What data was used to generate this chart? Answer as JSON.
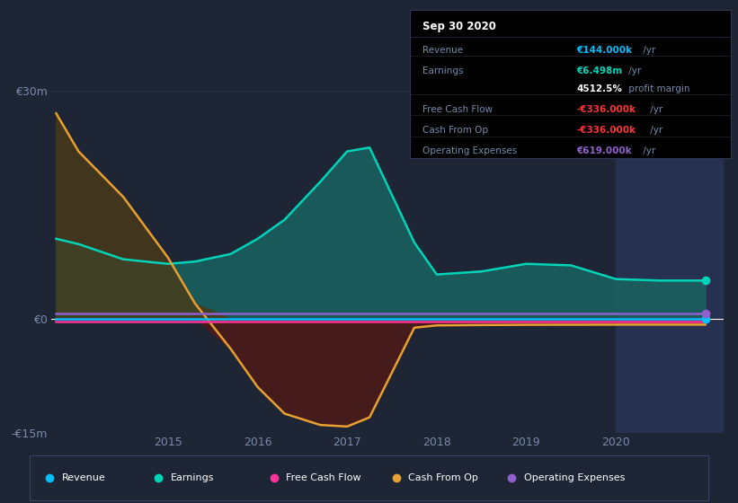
{
  "bg_color": "#1e2535",
  "plot_bg_color": "#1e2535",
  "highlight_color": "#263050",
  "ylim": [
    -15000000,
    30000000
  ],
  "xlim": [
    2013.7,
    2021.2
  ],
  "yticks": [
    -15000000,
    0,
    30000000
  ],
  "ytick_labels": [
    "-€15m",
    "€0",
    "€30m"
  ],
  "xticks": [
    2015,
    2016,
    2017,
    2018,
    2019,
    2020
  ],
  "x": [
    2013.75,
    2014.0,
    2014.5,
    2015.0,
    2015.3,
    2015.7,
    2016.0,
    2016.3,
    2016.7,
    2017.0,
    2017.25,
    2017.75,
    2018.0,
    2018.5,
    2019.0,
    2019.5,
    2020.0,
    2020.5,
    2021.0
  ],
  "revenue": [
    144,
    144,
    144,
    144,
    144,
    144,
    144,
    144,
    144,
    144,
    144,
    144,
    144,
    144,
    144,
    144,
    144,
    144,
    144
  ],
  "earnings": [
    10500000,
    9800000,
    7800000,
    7200000,
    7500000,
    8500000,
    10500000,
    13000000,
    18000000,
    22000000,
    22500000,
    10000000,
    5800000,
    6200000,
    7200000,
    7000000,
    5200000,
    5000000,
    5000000
  ],
  "free_cash_flow": [
    -336000,
    -336000,
    -336000,
    -336000,
    -336000,
    -336000,
    -336000,
    -336000,
    -336000,
    -336000,
    -336000,
    -336000,
    -336000,
    -336000,
    -336000,
    -336000,
    -336000,
    -336000,
    -336000
  ],
  "cash_from_op": [
    27000000,
    22000000,
    16000000,
    8000000,
    2000000,
    -4000000,
    -9000000,
    -12500000,
    -14000000,
    -14200000,
    -13000000,
    -1200000,
    -900000,
    -850000,
    -820000,
    -810000,
    -800000,
    -800000,
    -800000
  ],
  "operating_expenses": [
    619000,
    619000,
    619000,
    619000,
    619000,
    619000,
    619000,
    619000,
    619000,
    619000,
    619000,
    619000,
    619000,
    619000,
    619000,
    619000,
    619000,
    619000,
    619000
  ],
  "earnings_color": "#00d4b8",
  "earnings_fill": "#1a5f5f",
  "revenue_color": "#00bfff",
  "free_cash_flow_color": "#ff3399",
  "cash_from_op_color": "#e8a030",
  "cash_from_op_fill_pos": "#4a3a18",
  "cash_from_op_fill_neg": "#4a1a1a",
  "operating_expenses_color": "#9060d0",
  "grid_color": "#2a3555",
  "text_color": "#7a8aaa",
  "highlight_start": 2020.0,
  "highlight_end": 2021.2,
  "tooltip_bg": "#000000",
  "tooltip_border": "#333355"
}
